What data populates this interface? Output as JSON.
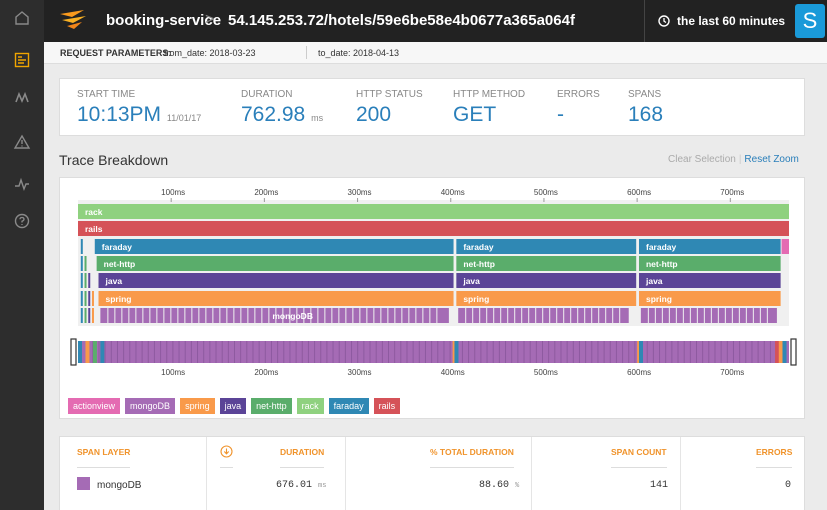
{
  "colors": {
    "rack": "#8fd17f",
    "rails": "#d55258",
    "faraday": "#2f88b4",
    "net_http": "#5aad6b",
    "java": "#5b4497",
    "spring": "#f99a4a",
    "mongodb": "#a56bb5",
    "actionview": "#e46bb2",
    "accent": "#2a7fba"
  },
  "rail": {
    "icons": [
      "home-icon",
      "dashboard-icon",
      "traces-icon",
      "alerts-icon",
      "metrics-icon",
      "help-icon"
    ]
  },
  "topbar": {
    "service": "booking-service",
    "separator": ">",
    "path": "54.145.253.72/hotels/59e6be58e4b0677a365a064f",
    "time_range": "the last 60 minutes",
    "avatar": "S"
  },
  "params": {
    "label": "REQUEST PARAMETERS:",
    "from_date": "from_date: 2018-03-23",
    "to_date": "to_date: 2018-04-13"
  },
  "stats": {
    "start_time_label": "START TIME",
    "start_time": "10:13PM",
    "start_date": "11/01/17",
    "duration_label": "DURATION",
    "duration": "762.98",
    "duration_unit": "ms",
    "http_status_label": "HTTP STATUS",
    "http_status": "200",
    "http_method_label": "HTTP METHOD",
    "http_method": "GET",
    "errors_label": "ERRORS",
    "errors": "-",
    "spans_label": "SPANS",
    "spans": "168"
  },
  "breakdown": {
    "title": "Trace Breakdown",
    "clear_selection": "Clear Selection",
    "reset_zoom": "Reset Zoom"
  },
  "chart_data": {
    "type": "timeline",
    "axis_ticks": [
      "100ms",
      "200ms",
      "300ms",
      "400ms",
      "500ms",
      "600ms",
      "700ms"
    ],
    "axis_range_ms": [
      0,
      762.98
    ],
    "rows": [
      {
        "layer": "rack",
        "segments": [
          [
            0,
            762.98
          ]
        ],
        "labels": [
          "rack"
        ]
      },
      {
        "layer": "rails",
        "segments": [
          [
            0,
            762.98
          ]
        ],
        "labels": [
          "rails"
        ]
      },
      {
        "layer": "faraday",
        "segments": [
          [
            18,
            403
          ],
          [
            406,
            599
          ],
          [
            602,
            754
          ]
        ],
        "labels": [
          "faraday",
          "faraday",
          "faraday"
        ]
      },
      {
        "layer": "net-http",
        "segments": [
          [
            20,
            403
          ],
          [
            406,
            599
          ],
          [
            602,
            754
          ]
        ],
        "labels": [
          "net-http",
          "net-http",
          "net-http"
        ]
      },
      {
        "layer": "java",
        "segments": [
          [
            22,
            403
          ],
          [
            406,
            599
          ],
          [
            602,
            754
          ]
        ],
        "labels": [
          "java",
          "java",
          "java"
        ]
      },
      {
        "layer": "spring",
        "segments": [
          [
            22,
            403
          ],
          [
            406,
            599
          ],
          [
            602,
            754
          ]
        ],
        "labels": [
          "spring",
          "spring",
          "spring"
        ]
      },
      {
        "layer": "mongoDB",
        "segments": [
          [
            24,
            398
          ],
          [
            408,
            591
          ],
          [
            604,
            750
          ]
        ],
        "labels": [
          "mongoDB",
          "",
          ""
        ]
      }
    ],
    "legend": [
      "actionview",
      "mongoDB",
      "spring",
      "java",
      "net-http",
      "rack",
      "faraday",
      "rails"
    ]
  },
  "table": {
    "headers": [
      "SPAN LAYER",
      "DURATION",
      "% TOTAL DURATION",
      "SPAN COUNT",
      "ERRORS"
    ],
    "rows": [
      {
        "layer": "mongoDB",
        "duration": "676.01",
        "duration_unit": "ms",
        "pct": "88.60",
        "pct_unit": "%",
        "count": "141",
        "errors": "0"
      }
    ]
  }
}
